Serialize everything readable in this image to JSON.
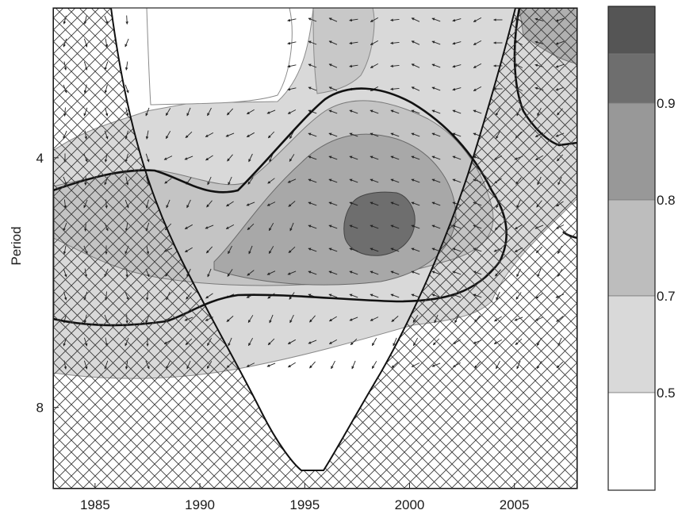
{
  "chart_data": {
    "type": "heatmap",
    "title": "",
    "xlabel": "",
    "ylabel": "Period",
    "x_range": [
      1983,
      2008
    ],
    "y_range": [
      1.6,
      9.3
    ],
    "x_ticks": [
      1985,
      1990,
      1995,
      2000,
      2005
    ],
    "y_ticks": [
      4,
      8
    ],
    "colorbar": {
      "levels": [
        0.5,
        0.7,
        0.8,
        0.9
      ],
      "tick_labels": [
        "0.5",
        "0.7",
        "0.8",
        "0.9"
      ],
      "fill_colors": [
        "#ffffff",
        "#d9d9d9",
        "#bdbdbd",
        "#989898",
        "#6e6e6e",
        "#555555"
      ]
    },
    "overlays": [
      "coherence contour fills",
      "phase arrows",
      "95% significance contours",
      "cone of influence (cross-hatched)"
    ]
  }
}
